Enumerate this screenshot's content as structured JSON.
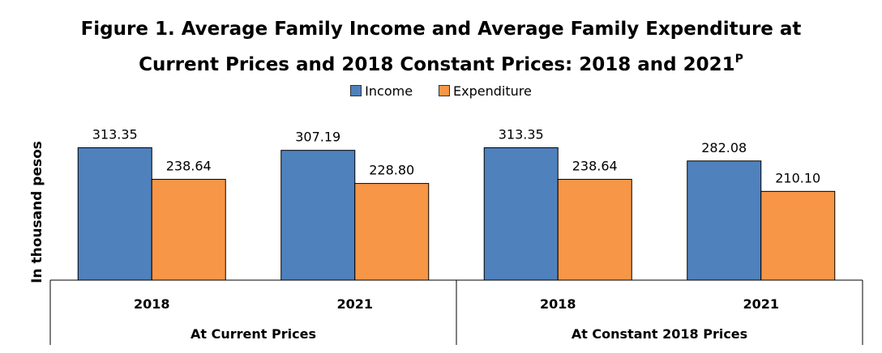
{
  "title": {
    "line1": "Figure 1. Average Family Income and Average Family Expenditure at",
    "line2": "Current Prices and 2018 Constant Prices: 2018 and 2021",
    "superscript": "P"
  },
  "chart_data": {
    "type": "bar",
    "ylabel": "In thousand pesos",
    "legend_position": "top",
    "grid": false,
    "categories": [
      "2018",
      "2021",
      "2018",
      "2021"
    ],
    "groups": [
      {
        "label": "At Current Prices",
        "categories": [
          "2018",
          "2021"
        ]
      },
      {
        "label": "At Constant 2018 Prices",
        "categories": [
          "2018",
          "2021"
        ]
      }
    ],
    "series": [
      {
        "name": "Income",
        "color": "#4F81BD",
        "values": [
          313.35,
          307.19,
          313.35,
          282.08
        ],
        "labels": [
          "313.35",
          "307.19",
          "313.35",
          "282.08"
        ]
      },
      {
        "name": "Expenditure",
        "color": "#F79646",
        "values": [
          238.64,
          228.8,
          238.64,
          210.1
        ],
        "labels": [
          "238.64",
          "228.80",
          "238.64",
          "210.10"
        ]
      }
    ]
  }
}
